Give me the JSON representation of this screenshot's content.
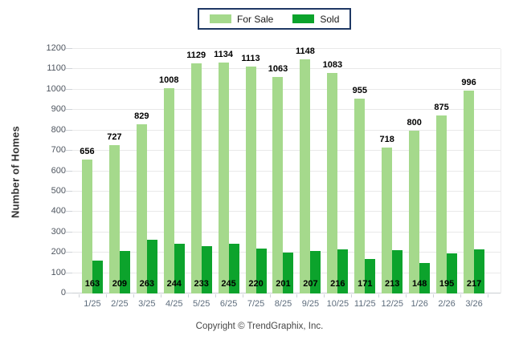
{
  "chart_data": {
    "type": "bar",
    "title": "",
    "categories": [
      "1/25",
      "2/25",
      "3/25",
      "4/25",
      "5/25",
      "6/25",
      "7/25",
      "8/25",
      "9/25",
      "10/25",
      "11/25",
      "12/25",
      "1/26",
      "2/26",
      "3/26"
    ],
    "series": [
      {
        "name": "For Sale",
        "color": "#A5D98C",
        "values": [
          656,
          727,
          829,
          1008,
          1129,
          1134,
          1113,
          1063,
          1148,
          1083,
          955,
          718,
          800,
          875,
          996
        ]
      },
      {
        "name": "Sold",
        "color": "#0CA32C",
        "values": [
          163,
          209,
          263,
          244,
          233,
          245,
          220,
          201,
          207,
          216,
          171,
          213,
          148,
          195,
          217
        ]
      }
    ],
    "xlabel": "",
    "ylabel": "Number of Homes",
    "ylim": [
      0,
      1200
    ],
    "ytick_step": 100,
    "grid": true,
    "legend_position": "top-center"
  },
  "footer": {
    "copyright": "Copyright © TrendGraphix, Inc."
  },
  "colors": {
    "for_sale": "#A5D98C",
    "sold": "#0CA32C",
    "legend_border": "#1F3864",
    "gridline": "#E9E9E9",
    "axis_line": "#C9CDD2",
    "y_tick_label": "#4E555F",
    "x_tick_label": "#5D6C7C",
    "value_label": "#000000",
    "axis_title": "#333333",
    "copyright_text": "#474747"
  }
}
